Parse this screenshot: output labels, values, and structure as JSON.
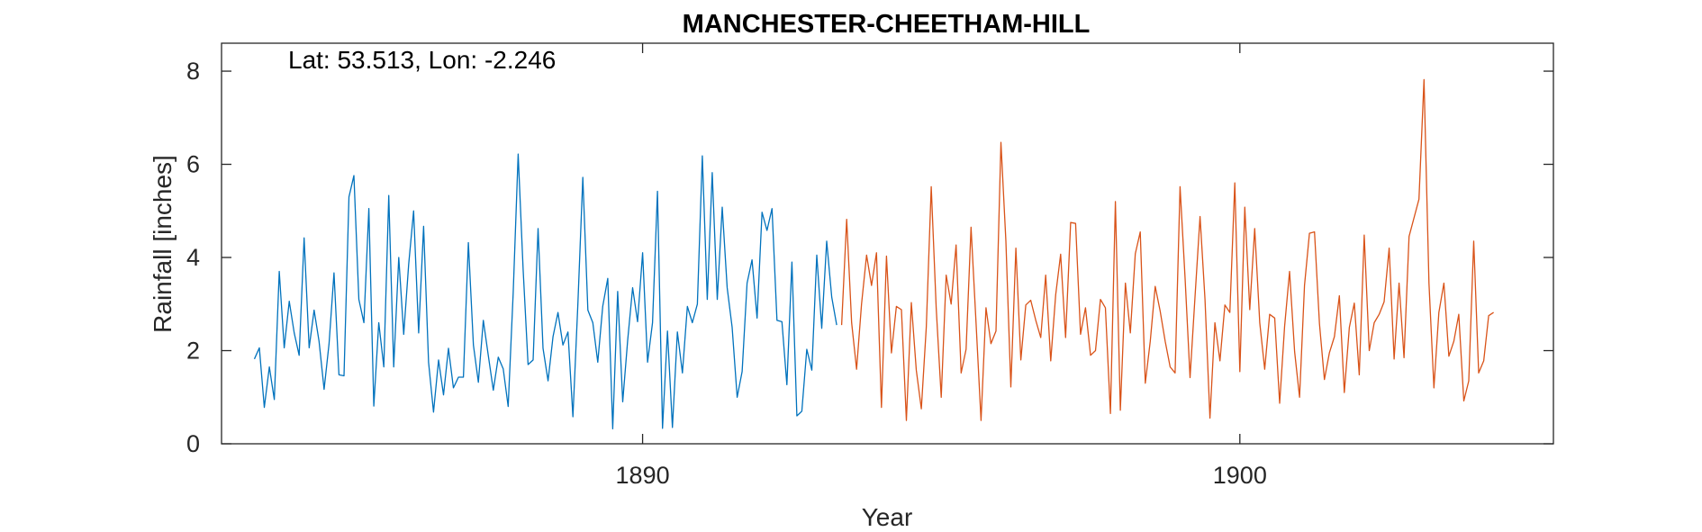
{
  "chart_data": {
    "type": "line",
    "title": "MANCHESTER-CHEETHAM-HILL",
    "annotation": "Lat: 53.513, Lon: -2.246",
    "xlabel": "Year",
    "ylabel": "Rainfall [inches]",
    "xlim": [
      1882.95,
      1905.25
    ],
    "ylim": [
      0,
      8.6
    ],
    "xticks": [
      1890,
      1900
    ],
    "xtick_labels": [
      "1890",
      "1900"
    ],
    "yticks": [
      0,
      2,
      4,
      6,
      8
    ],
    "ytick_labels": [
      "0",
      "2",
      "4",
      "6",
      "8"
    ],
    "grid": false,
    "series": [
      {
        "color": "#0072BD",
        "x_start": 1883.5,
        "x_step": 0.08333,
        "values": [
          1.82,
          2.06,
          0.78,
          1.65,
          0.95,
          3.7,
          2.06,
          3.06,
          2.38,
          1.9,
          4.42,
          2.06,
          2.87,
          2.2,
          1.17,
          2.15,
          3.67,
          1.48,
          1.46,
          5.3,
          5.76,
          3.1,
          2.6,
          5.05,
          0.81,
          2.6,
          1.65,
          5.33,
          1.65,
          4.0,
          2.35,
          3.85,
          5.0,
          2.38,
          4.67,
          1.75,
          0.68,
          1.8,
          1.05,
          2.05,
          1.2,
          1.43,
          1.43,
          4.32,
          2.12,
          1.32,
          2.65,
          1.9,
          1.15,
          1.86,
          1.61,
          0.8,
          3.25,
          6.22,
          3.75,
          1.7,
          1.8,
          4.62,
          2.05,
          1.35,
          2.3,
          2.82,
          2.12,
          2.4,
          0.58,
          3.0,
          5.72,
          2.87,
          2.6,
          1.75,
          2.95,
          3.55,
          0.32,
          3.27,
          0.9,
          2.22,
          3.35,
          2.62,
          4.1,
          1.75,
          2.6,
          5.42,
          0.33,
          2.42,
          0.35,
          2.4,
          1.52,
          2.95,
          2.6,
          3.0,
          6.18,
          3.1,
          5.82,
          3.1,
          5.08,
          3.35,
          2.5,
          1.0,
          1.55,
          3.45,
          3.95,
          2.7,
          4.97,
          4.58,
          5.05,
          2.65,
          2.62,
          1.27,
          3.9,
          0.6,
          0.7,
          2.03,
          1.58,
          4.05,
          2.48,
          4.35,
          3.15,
          2.55
        ]
      },
      {
        "color": "#D95319",
        "x_start": 1893.333,
        "x_step": 0.08333,
        "values": [
          2.55,
          4.82,
          2.6,
          1.6,
          3.0,
          4.05,
          3.4,
          4.1,
          0.78,
          4.03,
          1.95,
          2.95,
          2.88,
          0.5,
          3.03,
          1.58,
          0.75,
          2.5,
          5.52,
          2.92,
          1.0,
          3.62,
          3.0,
          4.27,
          1.52,
          2.03,
          4.65,
          2.58,
          0.5,
          2.92,
          2.15,
          2.42,
          6.47,
          4.35,
          1.22,
          4.2,
          1.8,
          2.98,
          3.08,
          2.65,
          2.28,
          3.62,
          1.78,
          3.2,
          4.07,
          2.28,
          4.75,
          4.73,
          2.35,
          2.92,
          1.9,
          2.0,
          3.1,
          2.92,
          0.65,
          5.2,
          0.72,
          3.45,
          2.38,
          4.08,
          4.55,
          1.3,
          2.2,
          3.38,
          2.85,
          2.2,
          1.65,
          1.52,
          5.52,
          3.55,
          1.42,
          3.15,
          4.88,
          3.1,
          0.55,
          2.6,
          1.78,
          2.98,
          2.82,
          5.6,
          1.55,
          5.08,
          2.88,
          4.62,
          2.6,
          1.6,
          2.78,
          2.7,
          0.87,
          2.52,
          3.7,
          1.98,
          1.0,
          3.4,
          4.52,
          4.55,
          2.58,
          1.38,
          1.95,
          2.3,
          3.18,
          1.1,
          2.5,
          3.02,
          1.48,
          4.48,
          2.0,
          2.6,
          2.78,
          3.05,
          4.2,
          1.82,
          3.45,
          1.85,
          4.45,
          4.85,
          5.25,
          7.82,
          3.45,
          1.2,
          2.82,
          3.45,
          1.88,
          2.2,
          2.78,
          0.92,
          1.35,
          4.35,
          1.52,
          1.78,
          2.75,
          2.82
        ]
      }
    ]
  }
}
